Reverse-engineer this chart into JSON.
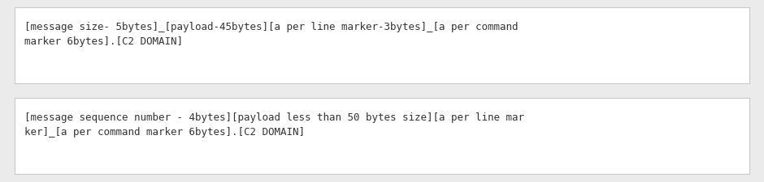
{
  "background_color": "#ebebeb",
  "box_bg_color": "#ffffff",
  "box_border_color": "#c8c8c8",
  "text_color": "#333333",
  "font_family": "monospace",
  "font_size": 9.0,
  "box1_text": "[message size- 5bytes]_[payload-45bytes][a per line marker-3bytes]_[a per command\nmarker 6bytes].[C2 DOMAIN]",
  "box2_text": "[message sequence number - 4bytes][payload less than 50 bytes size][a per line mar\nker]_[a per command marker 6bytes].[C2 DOMAIN]",
  "figsize": [
    9.4,
    2.26
  ],
  "dpi": 100
}
